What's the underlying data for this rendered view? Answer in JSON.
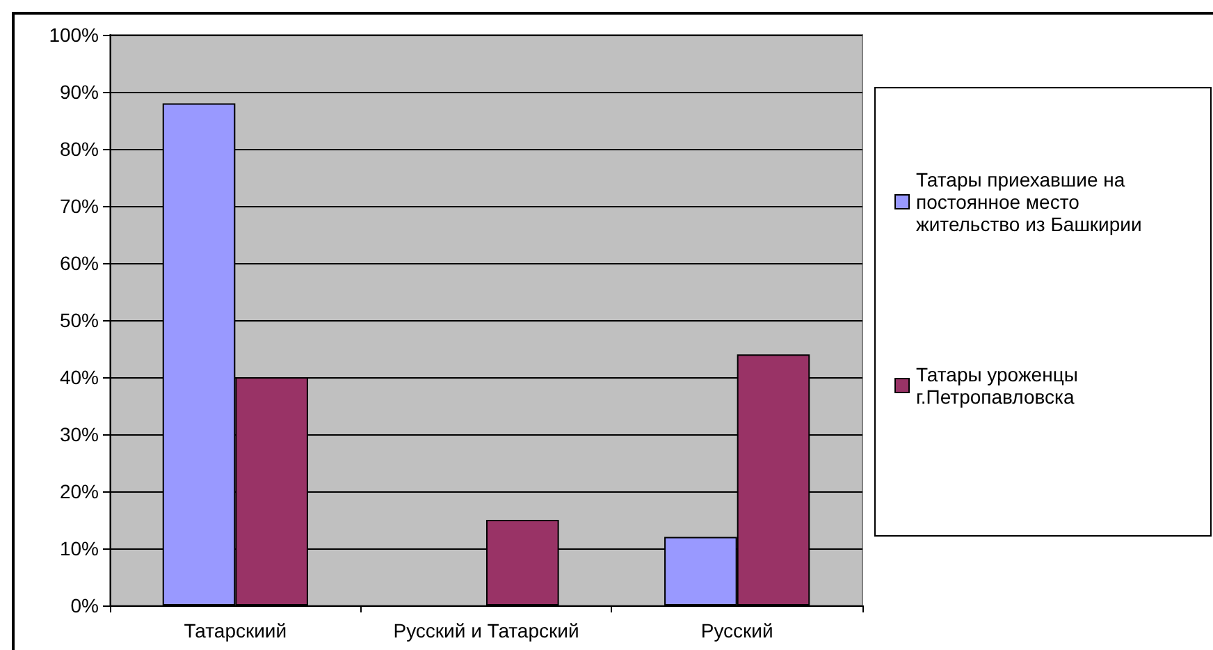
{
  "chart_data": {
    "type": "bar",
    "categories": [
      "Татарскиий",
      "Русский и Татарский",
      "Русский"
    ],
    "series": [
      {
        "name": "Татары приехавшие на постоянное место жительство из Башкирии",
        "color": "#9999ff",
        "values": [
          88,
          null,
          12
        ]
      },
      {
        "name": "Татары уроженцы г.Петропавловска",
        "color": "#993366",
        "values": [
          40,
          15,
          44
        ]
      }
    ],
    "ylim": [
      0,
      100
    ],
    "yticks": [
      {
        "value": 0,
        "label": "0%"
      },
      {
        "value": 10,
        "label": "10%"
      },
      {
        "value": 20,
        "label": "20%"
      },
      {
        "value": 30,
        "label": "30%"
      },
      {
        "value": 40,
        "label": "40%"
      },
      {
        "value": 50,
        "label": "50%"
      },
      {
        "value": 60,
        "label": "60%"
      },
      {
        "value": 70,
        "label": "70%"
      },
      {
        "value": 80,
        "label": "80%"
      },
      {
        "value": 90,
        "label": "90%"
      },
      {
        "value": 100,
        "label": "100%"
      }
    ],
    "grid": "y",
    "legend": "right"
  }
}
